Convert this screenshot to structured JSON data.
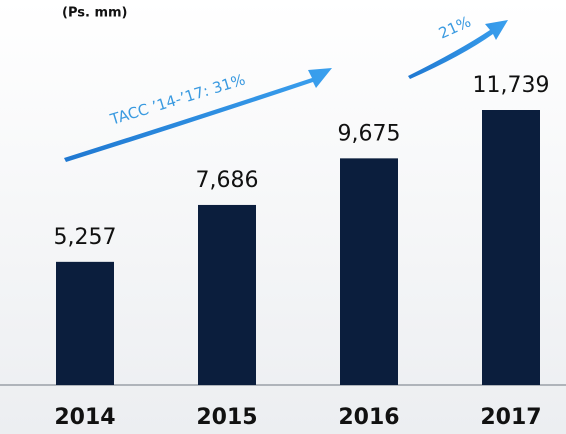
{
  "chart_data": {
    "type": "bar",
    "subtitle": "(Ps. mm)",
    "categories": [
      "2014",
      "2015",
      "2016",
      "2017"
    ],
    "values": [
      5257,
      7686,
      9675,
      11739
    ],
    "value_labels": [
      "5,257",
      "7,686",
      "9,675",
      "11,739"
    ],
    "color": "#0b1e3d",
    "annotations": [
      "TACC ’14-’17: 31%",
      "21%"
    ]
  }
}
